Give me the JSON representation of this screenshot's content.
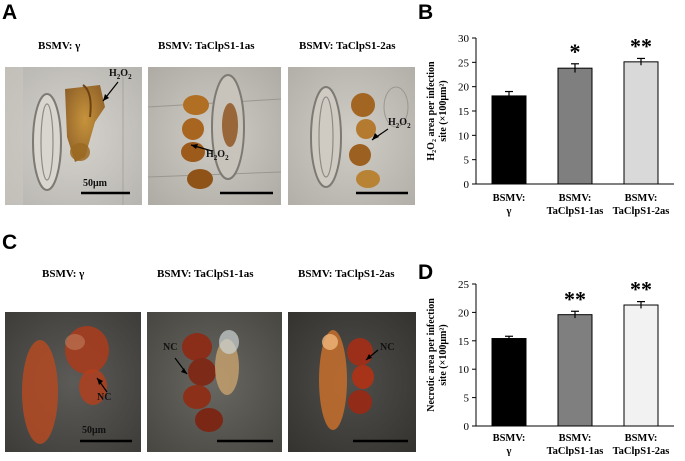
{
  "panels": {
    "A": {
      "letter": "A",
      "captions": [
        "BSMV: γ",
        "BSMV: TaClpS1-1as",
        "BSMV: TaClpS1-2as"
      ],
      "marker": "H",
      "scale": "50μm"
    },
    "B": {
      "letter": "B"
    },
    "C": {
      "letter": "C",
      "captions": [
        "BSMV: γ",
        "BSMV: TaClpS1-1as",
        "BSMV: TaClpS1-2as"
      ],
      "marker": "NC",
      "scale": "50μm"
    },
    "D": {
      "letter": "D"
    }
  },
  "colors": {
    "black": "#000000",
    "darkgray": "#7f7f7f",
    "lightgray": "#d9d9d9",
    "verylight": "#f2f2f2"
  },
  "chart_data": [
    {
      "type": "bar",
      "panel": "B",
      "categories": [
        [
          "BSMV:",
          "γ"
        ],
        [
          "BSMV:",
          "TaClpS1-1as"
        ],
        [
          "BSMV:",
          "TaClpS1-2as"
        ]
      ],
      "values": [
        18.1,
        23.8,
        25.1
      ],
      "errors": [
        0.9,
        0.9,
        0.7
      ],
      "significance": [
        "",
        "*",
        "**"
      ],
      "ylabel_lines": [
        "H₂O₂ area per infection",
        "site (×100μm²)"
      ],
      "ylim": [
        0,
        30
      ],
      "yticks": [
        0,
        5,
        10,
        15,
        20,
        25,
        30
      ],
      "bar_colors": [
        "#000000",
        "#7f7f7f",
        "#d9d9d9"
      ]
    },
    {
      "type": "bar",
      "panel": "D",
      "categories": [
        [
          "BSMV:",
          "γ"
        ],
        [
          "BSMV:",
          "TaClpS1-1as"
        ],
        [
          "BSMV:",
          "TaClpS1-2as"
        ]
      ],
      "values": [
        15.4,
        19.6,
        21.3
      ],
      "errors": [
        0.4,
        0.6,
        0.6
      ],
      "significance": [
        "",
        "**",
        "**"
      ],
      "ylabel_lines": [
        "Necrotic area per infection",
        "site (×100μm²)"
      ],
      "ylim": [
        0,
        25
      ],
      "yticks": [
        0,
        5,
        10,
        15,
        20,
        25
      ],
      "bar_colors": [
        "#000000",
        "#7f7f7f",
        "#f2f2f2"
      ]
    }
  ]
}
